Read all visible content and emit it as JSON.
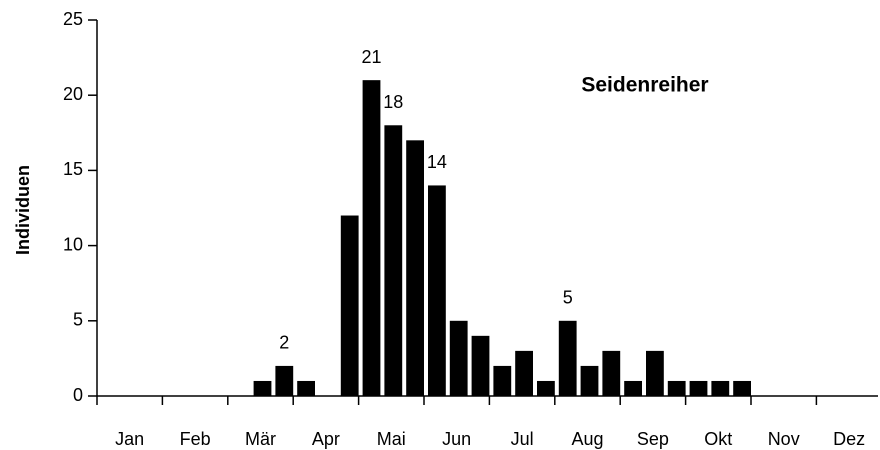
{
  "chart_data": {
    "type": "bar",
    "title": "Seidenreiher",
    "ylabel": "Individuen",
    "categories": [
      null,
      "Jan",
      null,
      null,
      "Feb",
      null,
      null,
      "Mär",
      null,
      null,
      "Apr",
      null,
      null,
      "Mai",
      null,
      null,
      "Jun",
      null,
      null,
      "Jul",
      null,
      null,
      "Aug",
      null,
      null,
      "Sep",
      null,
      null,
      "Okt",
      null,
      null,
      "Nov",
      null,
      null,
      "Dez",
      null
    ],
    "values": [
      0,
      0,
      0,
      0,
      0,
      0,
      0,
      1,
      2,
      1,
      0,
      12,
      21,
      18,
      17,
      14,
      5,
      4,
      2,
      3,
      1,
      5,
      2,
      3,
      1,
      3,
      1,
      1,
      1,
      1,
      0,
      0,
      0,
      0,
      0,
      0
    ],
    "value_labels": [
      null,
      null,
      null,
      null,
      null,
      null,
      null,
      null,
      2,
      null,
      null,
      null,
      21,
      18,
      null,
      14,
      null,
      null,
      null,
      null,
      null,
      5,
      null,
      null,
      null,
      null,
      null,
      null,
      null,
      null,
      null,
      null,
      null,
      null,
      null,
      null
    ],
    "color": "#000000",
    "ylim": [
      0,
      25
    ],
    "yticks": [
      0,
      5,
      10,
      15,
      20,
      25
    ],
    "grid": false
  }
}
